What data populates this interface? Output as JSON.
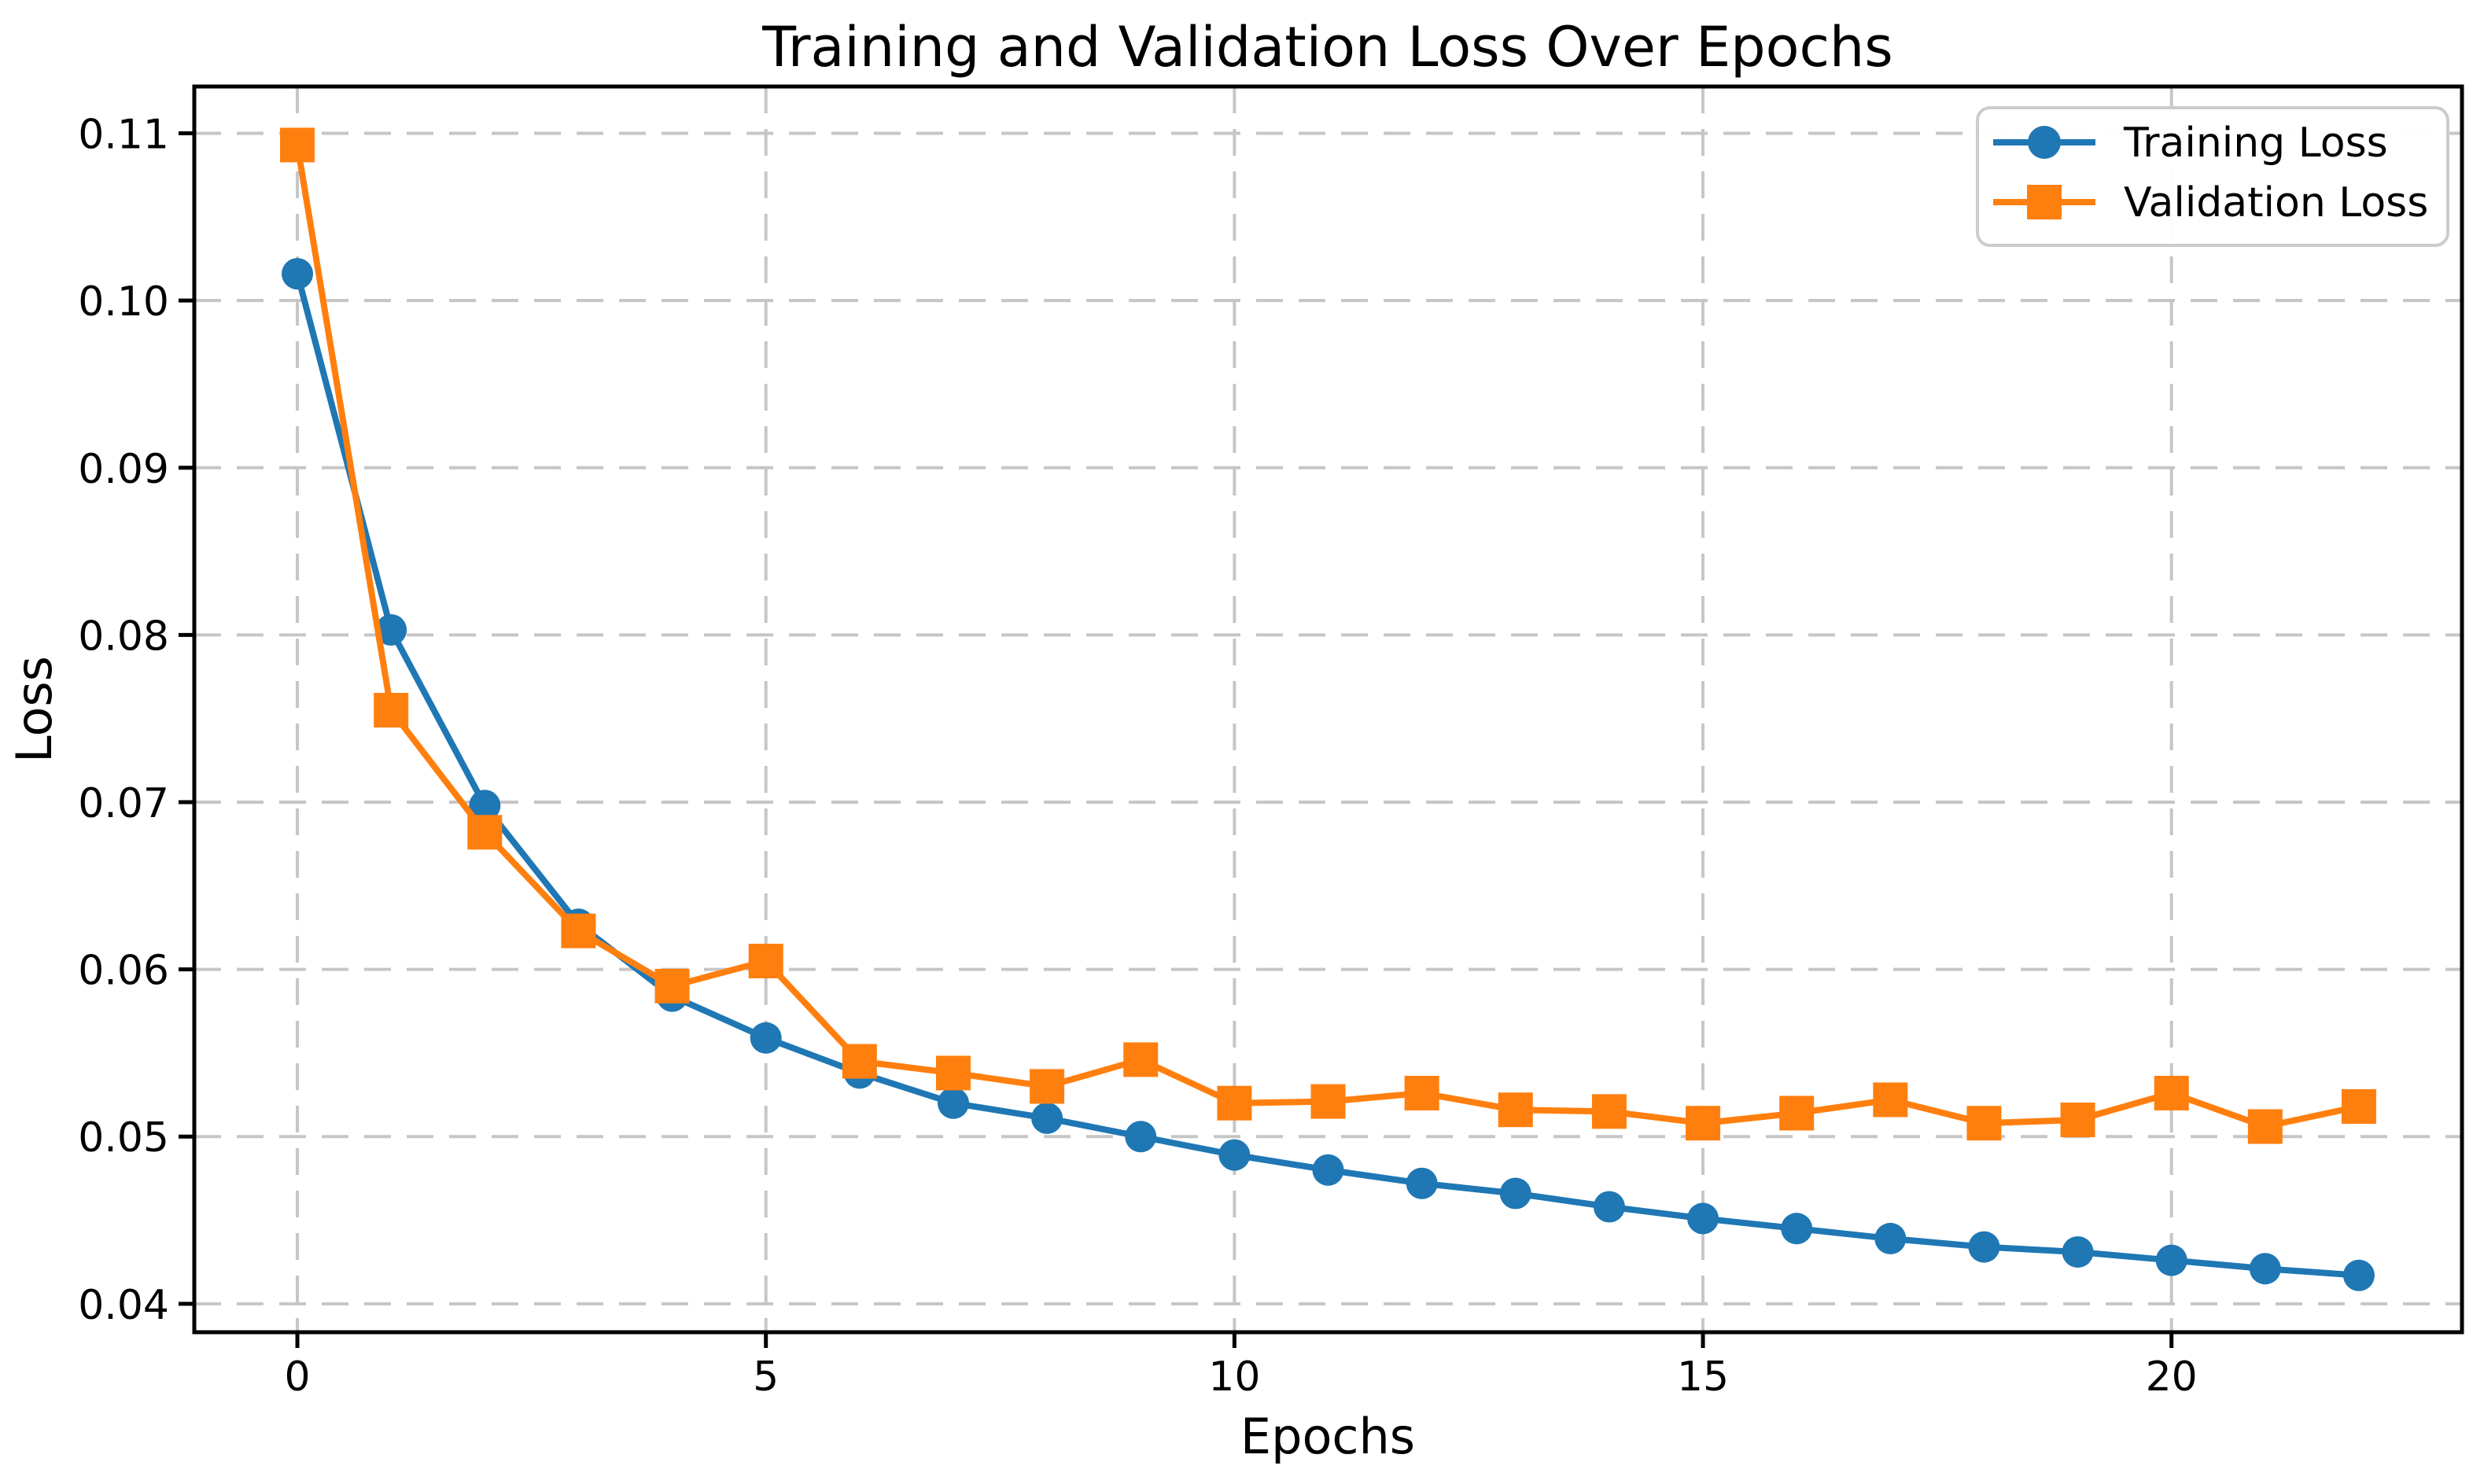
{
  "figure": {
    "background": "#ffffff",
    "plot_background": "#ffffff",
    "spine_color": "#000000",
    "grid_color": "#c6c6c6",
    "legend_border_color": "#cccccc",
    "legend_background": "#ffffff"
  },
  "chart_data": {
    "type": "line",
    "title": "Training and Validation Loss Over Epochs",
    "xlabel": "Epochs",
    "ylabel": "Loss",
    "grid": true,
    "grid_style": "dashed",
    "legend_position": "upper right",
    "xlim": [
      -1.1,
      23.1
    ],
    "ylim": [
      0.0383,
      0.1128
    ],
    "xticks": [
      0,
      5,
      10,
      15,
      20
    ],
    "yticks": [
      0.04,
      0.05,
      0.06,
      0.07,
      0.08,
      0.09,
      0.1,
      0.11
    ],
    "ytick_labels": [
      "0.04",
      "0.05",
      "0.06",
      "0.07",
      "0.08",
      "0.09",
      "0.10",
      "0.11"
    ],
    "x": [
      0,
      1,
      2,
      3,
      4,
      5,
      6,
      7,
      8,
      9,
      10,
      11,
      12,
      13,
      14,
      15,
      16,
      17,
      18,
      19,
      20,
      21,
      22
    ],
    "series": [
      {
        "name": "Training Loss",
        "color": "#1f77b4",
        "marker": "circle",
        "values": [
          0.1016,
          0.0803,
          0.0698,
          0.0627,
          0.0584,
          0.0559,
          0.0538,
          0.052,
          0.0511,
          0.05,
          0.0489,
          0.048,
          0.0472,
          0.0466,
          0.0458,
          0.0451,
          0.0445,
          0.0439,
          0.0434,
          0.0431,
          0.0426,
          0.0421,
          0.0417
        ]
      },
      {
        "name": "Validation Loss",
        "color": "#ff7f0e",
        "marker": "square",
        "values": [
          0.1093,
          0.0755,
          0.0682,
          0.0623,
          0.059,
          0.0605,
          0.0545,
          0.0538,
          0.053,
          0.0546,
          0.052,
          0.0521,
          0.0526,
          0.0516,
          0.0515,
          0.0508,
          0.0514,
          0.0522,
          0.0508,
          0.051,
          0.0526,
          0.0506,
          0.0518
        ]
      }
    ]
  }
}
